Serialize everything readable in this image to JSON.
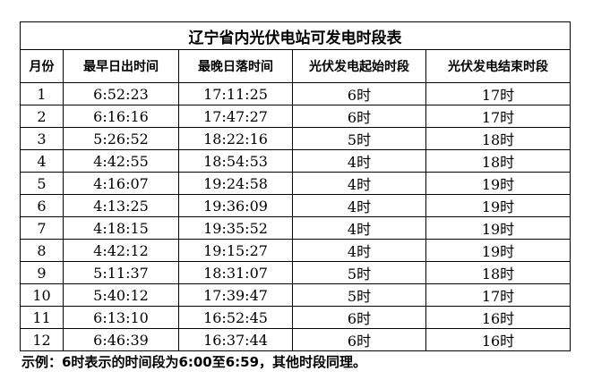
{
  "table": {
    "title": "辽宁省内光伏电站可发电时段表",
    "headers": [
      "月份",
      "最早日出时间",
      "最晚日落时间",
      "光伏发电起始时段",
      "光伏发电结束时段"
    ],
    "rows": [
      [
        "1",
        "6:52:23",
        "17:11:25",
        "6时",
        "17时"
      ],
      [
        "2",
        "6:16:16",
        "17:47:27",
        "6时",
        "17时"
      ],
      [
        "3",
        "5:26:52",
        "18:22:16",
        "5时",
        "18时"
      ],
      [
        "4",
        "4:42:55",
        "18:54:53",
        "4时",
        "18时"
      ],
      [
        "5",
        "4:16:07",
        "19:24:58",
        "4时",
        "19时"
      ],
      [
        "6",
        "4:13:25",
        "19:36:09",
        "4时",
        "19时"
      ],
      [
        "7",
        "4:18:15",
        "19:35:52",
        "4时",
        "19时"
      ],
      [
        "8",
        "4:42:12",
        "19:15:27",
        "4时",
        "19时"
      ],
      [
        "9",
        "5:11:37",
        "18:31:07",
        "5时",
        "18时"
      ],
      [
        "10",
        "5:40:12",
        "17:39:47",
        "5时",
        "17时"
      ],
      [
        "11",
        "6:13:10",
        "16:52:45",
        "6时",
        "16时"
      ],
      [
        "12",
        "6:46:39",
        "16:37:44",
        "6时",
        "16时"
      ]
    ]
  },
  "note": "示例：6时表示的时间段为6:00至6:59，其他时段同理。"
}
